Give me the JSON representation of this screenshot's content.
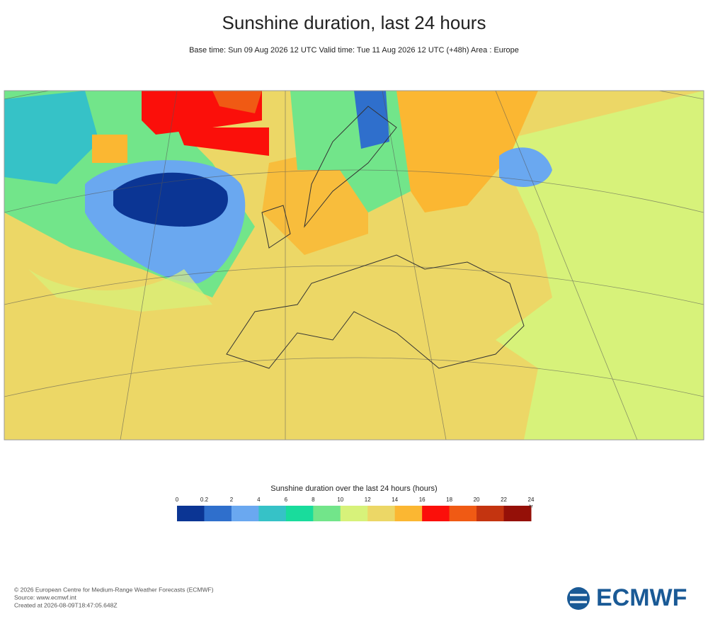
{
  "header": {
    "title": "Sunshine duration, last 24 hours",
    "subtitle": "Base time: Sun 09 Aug 2026 12 UTC Valid time: Tue 11 Aug 2026 12 UTC (+48h) Area : Europe"
  },
  "legend": {
    "title": "Sunshine duration over the last 24 hours (hours)",
    "ticks": [
      0,
      0.2,
      2,
      4,
      6,
      8,
      10,
      12,
      14,
      16,
      18,
      20,
      22,
      24
    ],
    "unit": "hr",
    "colors": [
      "#0b3594",
      "#2f6fcc",
      "#6aa8f0",
      "#36c2c7",
      "#19dc9c",
      "#72e58a",
      "#d7f27a",
      "#ecd766",
      "#fbb732",
      "#fb0f0a",
      "#f05a14",
      "#c43410",
      "#951008"
    ]
  },
  "footer": {
    "lines": [
      "© 2026 European Centre for Medium-Range Weather Forecasts (ECMWF)",
      "Source: www.ecmwf.int",
      "Created at 2026-08-09T18:47:05.648Z"
    ],
    "logo": "ECMWF"
  }
}
